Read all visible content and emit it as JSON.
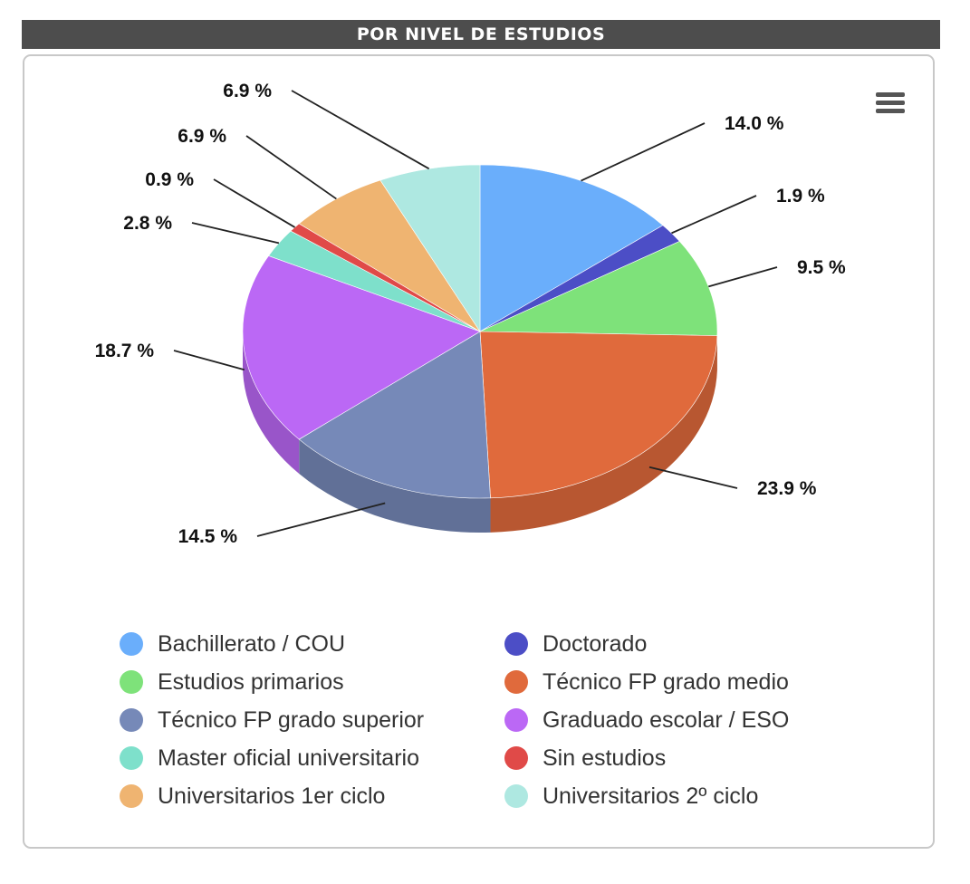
{
  "header": {
    "title": "POR NIVEL DE ESTUDIOS"
  },
  "menu": {
    "icon": "hamburger-menu-icon"
  },
  "chart_data": {
    "type": "pie",
    "title": "POR NIVEL DE ESTUDIOS",
    "three_d": true,
    "legend_placement": "bottom",
    "unit": "%",
    "slices": [
      {
        "name": "Bachillerato / COU",
        "value": 14.0,
        "label": "14.0 %",
        "color": "#6aaefb"
      },
      {
        "name": "Doctorado",
        "value": 1.9,
        "label": "1.9 %",
        "color": "#4c4ec6"
      },
      {
        "name": "Estudios primarios",
        "value": 9.5,
        "label": "9.5 %",
        "color": "#7ee27a"
      },
      {
        "name": "Técnico FP grado medio",
        "value": 23.9,
        "label": "23.9 %",
        "color": "#e06a3c"
      },
      {
        "name": "Técnico FP grado superior",
        "value": 14.5,
        "label": "14.5 %",
        "color": "#7689b8"
      },
      {
        "name": "Graduado escolar / ESO",
        "value": 18.7,
        "label": "18.7 %",
        "color": "#bb68f5"
      },
      {
        "name": "Master oficial universitario",
        "value": 2.8,
        "label": "2.8 %",
        "color": "#7ee0cb"
      },
      {
        "name": "Sin estudios",
        "value": 0.9,
        "label": "0.9 %",
        "color": "#e04a48"
      },
      {
        "name": "Universitarios 1er ciclo",
        "value": 6.9,
        "label": "6.9 %",
        "color": "#efb471"
      },
      {
        "name": "Universitarios 2º ciclo",
        "value": 6.9,
        "label": "6.9 %",
        "color": "#aee8e1"
      }
    ]
  }
}
